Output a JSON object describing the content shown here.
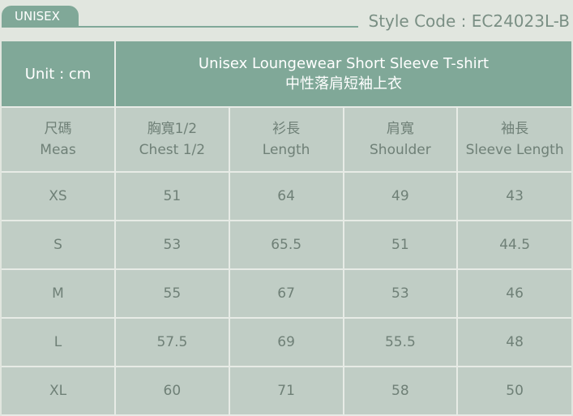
{
  "tab_label": "UNISEX",
  "style_code": "Style Code : EC24023L-B",
  "table": {
    "unit": "Unit : cm",
    "title_en": "Unisex Loungewear Short Sleeve T-shirt",
    "title_zh": "中性落肩短袖上衣",
    "columns": [
      {
        "zh": "尺碼",
        "en": "Meas"
      },
      {
        "zh": "胸寬1/2",
        "en": "Chest 1/2"
      },
      {
        "zh": "衫長",
        "en": "Length"
      },
      {
        "zh": "肩寬",
        "en": "Shoulder"
      },
      {
        "zh": "袖長",
        "en": "Sleeve Length"
      }
    ],
    "rows": [
      [
        "XS",
        "51",
        "64",
        "49",
        "43"
      ],
      [
        "S",
        "53",
        "65.5",
        "51",
        "44.5"
      ],
      [
        "M",
        "55",
        "67",
        "53",
        "46"
      ],
      [
        "L",
        "57.5",
        "69",
        "55.5",
        "48"
      ],
      [
        "XL",
        "60",
        "71",
        "58",
        "50"
      ]
    ]
  },
  "colors": {
    "header": "#80a898",
    "cell": "#c0cdc5",
    "background": "#e1e6df",
    "text": "#6f8077"
  }
}
